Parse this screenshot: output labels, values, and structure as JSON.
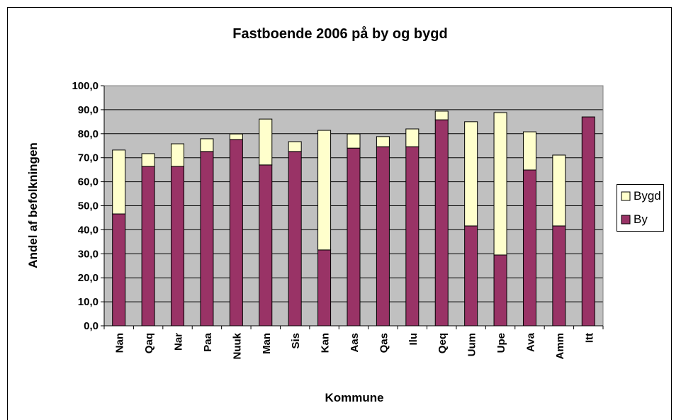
{
  "chart_data": {
    "type": "stacked-bar",
    "title": "Fastboende 2006 på by og bygd",
    "x_label": "Kommune",
    "y_label": "Andel af befolkningen",
    "categories": [
      "Nan",
      "Qaq",
      "Nar",
      "Paa",
      "Nuuk",
      "Man",
      "Sis",
      "Kan",
      "Aas",
      "Qas",
      "Ilu",
      "Qeq",
      "Uum",
      "Upe",
      "Ava",
      "Amm",
      "Itt"
    ],
    "series": [
      {
        "name": "By",
        "color": "#993366",
        "values": [
          46.6,
          66.4,
          66.4,
          72.6,
          77.6,
          67.0,
          72.6,
          31.6,
          74.0,
          74.6,
          74.6,
          85.8,
          41.6,
          29.5,
          64.9,
          41.6,
          87.0
        ]
      },
      {
        "name": "Bygd",
        "color": "#ffffcc",
        "values": [
          26.6,
          5.3,
          9.4,
          5.3,
          2.3,
          19.1,
          4.1,
          49.8,
          5.9,
          4.2,
          7.4,
          3.6,
          43.4,
          59.3,
          15.9,
          29.5,
          0
        ]
      }
    ],
    "ylim": [
      0,
      100
    ],
    "yticks": [
      {
        "value": 0,
        "label": "0,0"
      },
      {
        "value": 10,
        "label": "10,0"
      },
      {
        "value": 20,
        "label": "20,0"
      },
      {
        "value": 30,
        "label": "30,0"
      },
      {
        "value": 40,
        "label": "40,0"
      },
      {
        "value": 50,
        "label": "50,0"
      },
      {
        "value": 60,
        "label": "60,0"
      },
      {
        "value": 70,
        "label": "70,0"
      },
      {
        "value": 80,
        "label": "80,0"
      },
      {
        "value": 90,
        "label": "90,0"
      },
      {
        "value": 100,
        "label": "100,0"
      }
    ],
    "grid": true,
    "legend": "right"
  }
}
